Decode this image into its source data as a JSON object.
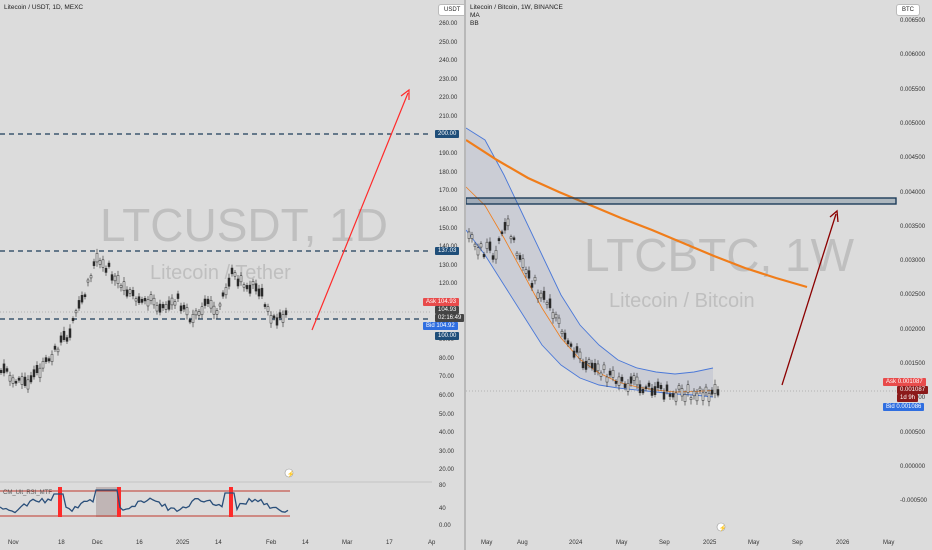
{
  "left": {
    "title": "Litecoin / USDT, 1D, MEXC",
    "currency_button": "USDT",
    "watermark_symbol": "LTCUSDT, 1D",
    "watermark_name": "Litecoin / Tether",
    "price_labels": [
      "260.00",
      "250.00",
      "240.00",
      "230.00",
      "220.00",
      "210.00",
      "200.00",
      "190.00",
      "180.00",
      "170.00",
      "160.00",
      "150.00",
      "140.00",
      "130.00",
      "120.00",
      "110.00",
      "100.00",
      "90.00",
      "80.00",
      "70.00",
      "60.00",
      "50.00",
      "40.00",
      "30.00",
      "20.00"
    ],
    "level_200": "200.00",
    "level_137": "137.03",
    "level_100": "100.00",
    "ask_label": "Ask",
    "ask_price": "104.93",
    "last_price": "104.93",
    "countdown": "02:16:49",
    "bid_label": "Bid",
    "bid_price": "104.92",
    "indicator_name": "CM_Ult_RSI_MTF",
    "indicator_levels": [
      "80",
      "40",
      "0.00"
    ],
    "x_labels": [
      "Nov",
      "18",
      "Dec",
      "16",
      "2025",
      "14",
      "Feb",
      "14",
      "Mar",
      "17",
      "Ap"
    ]
  },
  "right": {
    "title": "Litecoin / Bitcoin, 1W, BINANCE",
    "legend_ma": "MA",
    "legend_bb": "BB",
    "currency_button": "BTC",
    "watermark_symbol": "LTCBTC, 1W",
    "watermark_name": "Litecoin / Bitcoin",
    "price_labels": [
      "0.006500",
      "0.006000",
      "0.005500",
      "0.005000",
      "0.004500",
      "0.004000",
      "0.003500",
      "0.003000",
      "0.002500",
      "0.002000",
      "0.001500",
      "0.001000",
      "0.000500",
      "0.000000",
      "-0.000500"
    ],
    "ask_label": "Ask",
    "ask_price": "0.001087",
    "last_price": "0.001087",
    "countdown": "1d 9h",
    "bid_label": "Bid",
    "bid_price": "0.001086",
    "x_labels": [
      "May",
      "Aug",
      "2024",
      "May",
      "Sep",
      "2025",
      "May",
      "Sep",
      "2026",
      "May"
    ]
  },
  "colors": {
    "background": "#dcdcdc",
    "candle": "#2b2b2b",
    "dashed_level": "#1d3c5a",
    "red_arrow": "#ff2a2a",
    "dark_red_arrow": "#8b0000",
    "ma_line": "#f07d1a",
    "bb_band": "#4a78d8",
    "ask_tag": "#e84b4b",
    "bid_tag": "#2f6ee0",
    "level_tag": "#1f4e79"
  }
}
